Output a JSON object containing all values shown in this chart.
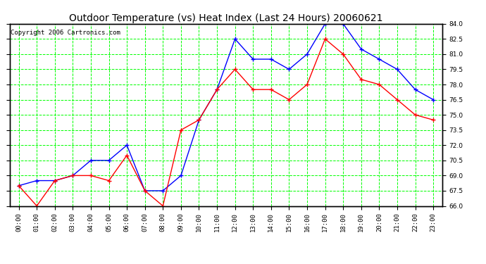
{
  "title": "Outdoor Temperature (vs) Heat Index (Last 24 Hours) 20060621",
  "copyright": "Copyright 2006 Cartronics.com",
  "hours": [
    "00:00",
    "01:00",
    "02:00",
    "03:00",
    "04:00",
    "05:00",
    "06:00",
    "07:00",
    "08:00",
    "09:00",
    "10:00",
    "11:00",
    "12:00",
    "13:00",
    "14:00",
    "15:00",
    "16:00",
    "17:00",
    "18:00",
    "19:00",
    "20:00",
    "21:00",
    "22:00",
    "23:00"
  ],
  "blue_temp": [
    68.0,
    68.5,
    68.5,
    69.0,
    70.5,
    70.5,
    72.0,
    67.5,
    67.5,
    69.0,
    74.5,
    77.5,
    82.5,
    80.5,
    80.5,
    79.5,
    81.0,
    84.0,
    84.0,
    81.5,
    80.5,
    79.5,
    77.5,
    76.5
  ],
  "red_heat": [
    68.0,
    66.0,
    68.5,
    69.0,
    69.0,
    68.5,
    71.0,
    67.5,
    66.0,
    73.5,
    74.5,
    77.5,
    79.5,
    77.5,
    77.5,
    76.5,
    78.0,
    82.5,
    81.0,
    78.5,
    78.0,
    76.5,
    75.0,
    74.5
  ],
  "ylim": [
    66.0,
    84.0
  ],
  "yticks": [
    66.0,
    67.5,
    69.0,
    70.5,
    72.0,
    73.5,
    75.0,
    76.5,
    78.0,
    79.5,
    81.0,
    82.5,
    84.0
  ],
  "blue_color": "#0000ff",
  "red_color": "#ff0000",
  "bg_color": "#ffffff",
  "grid_color": "#00ff00",
  "title_fontsize": 10,
  "copyright_fontsize": 6.5
}
